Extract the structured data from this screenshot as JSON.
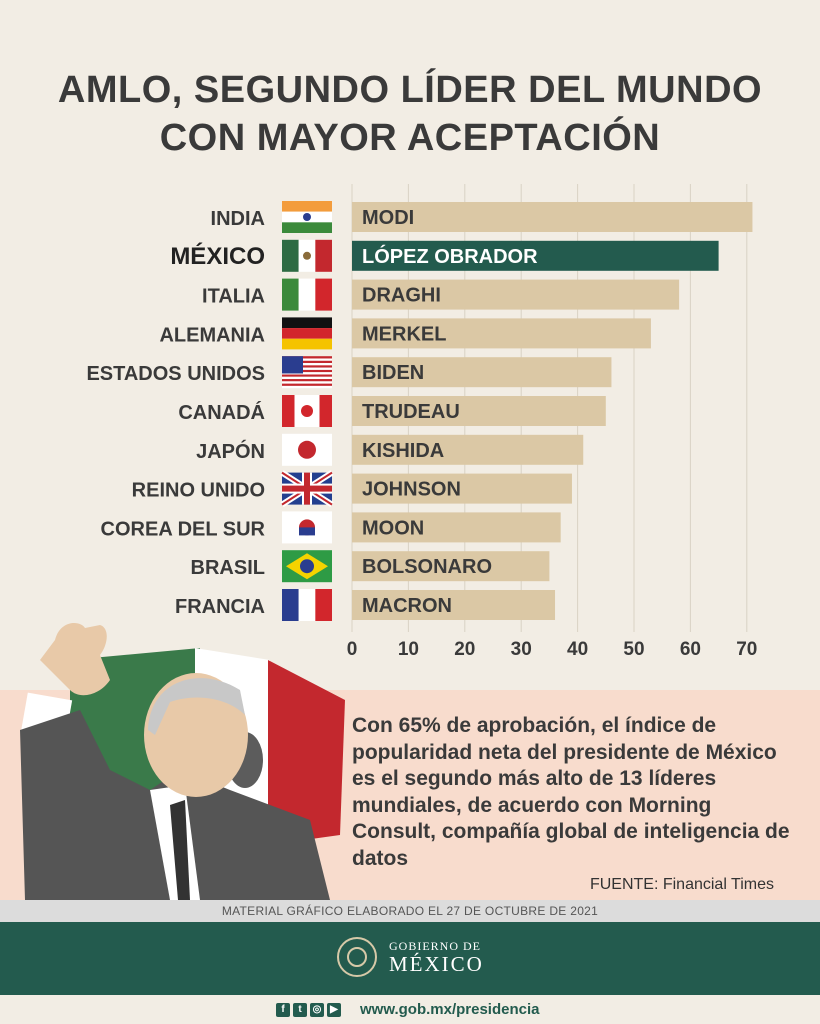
{
  "title_line1": "AMLO, SEGUNDO LÍDER DEL MUNDO",
  "title_line2": "CON MAYOR ACEPTACIÓN",
  "note": "Con 65% de aprobación, el índice de popularidad neta del presidente de México es el segundo más alto de 13 líderes mundiales, de acuerdo con Morning Consult, compañía global de inteligencia de datos",
  "source": "FUENTE: Financial Times",
  "made": "MATERIAL GRÁFICO ELABORADO EL 27 DE OCTUBRE DE 2021",
  "footer": {
    "logo_line1": "GOBIERNO DE",
    "logo_line2": "MÉXICO",
    "url": "www.gob.mx/presidencia"
  },
  "colors": {
    "bar": "#dbc8a5",
    "highlight": "#235b4e",
    "text": "#3a3a3a",
    "footer": "#235b4e",
    "pink": "#f8dccd"
  },
  "chart_data": {
    "type": "bar",
    "orientation": "horizontal",
    "categories": [
      "INDIA",
      "MÉXICO",
      "ITALIA",
      "ALEMANIA",
      "ESTADOS UNIDOS",
      "CANADÁ",
      "JAPÓN",
      "REINO UNIDO",
      "COREA DEL SUR",
      "BRASIL",
      "FRANCIA"
    ],
    "leaders": [
      "MODI",
      "LÓPEZ OBRADOR",
      "DRAGHI",
      "MERKEL",
      "BIDEN",
      "TRUDEAU",
      "KISHIDA",
      "JOHNSON",
      "MOON",
      "BOLSONARO",
      "MACRON"
    ],
    "values": [
      71,
      65,
      58,
      53,
      46,
      45,
      41,
      39,
      37,
      35,
      36
    ],
    "highlight_index": 1,
    "flags": [
      "flag-india",
      "flag-mexico",
      "flag-italy",
      "flag-germany",
      "flag-usa",
      "flag-canada",
      "flag-japan",
      "flag-uk",
      "flag-korea",
      "flag-brazil",
      "flag-france"
    ],
    "xticks": [
      0,
      10,
      20,
      30,
      40,
      50,
      60,
      70
    ],
    "xlim": [
      0,
      73
    ],
    "grid": true
  }
}
